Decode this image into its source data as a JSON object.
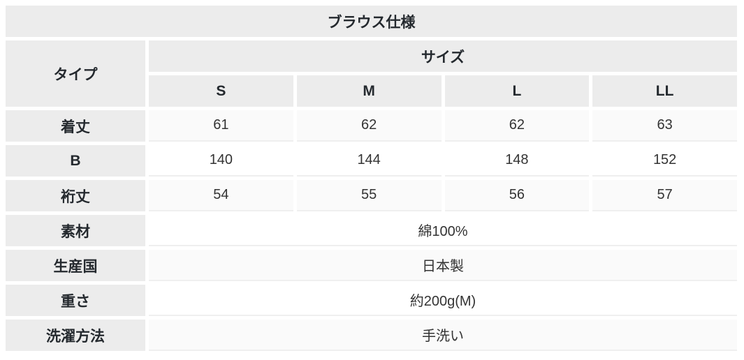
{
  "chart_data": {
    "type": "table",
    "title": "ブラウス仕様",
    "type_header": "タイプ",
    "size_group_header": "サイズ",
    "size_columns": [
      "S",
      "M",
      "L",
      "LL"
    ],
    "measurement_rows": [
      {
        "label": "着丈",
        "values": [
          "61",
          "62",
          "62",
          "63"
        ]
      },
      {
        "label": "B",
        "values": [
          "140",
          "144",
          "148",
          "152"
        ]
      },
      {
        "label": "裄丈",
        "values": [
          "54",
          "55",
          "56",
          "57"
        ]
      }
    ],
    "info_rows": [
      {
        "label": "素材",
        "value": "綿100%"
      },
      {
        "label": "生産国",
        "value": "日本製"
      },
      {
        "label": "重さ",
        "value": "約200g(M)"
      },
      {
        "label": "洗濯方法",
        "value": "手洗い"
      }
    ],
    "colors": {
      "header_cell_bg": "#ececec",
      "value_row_bg": "#ffffff",
      "value_row_alt_bg": "#fafafa",
      "header_text": "#24292e",
      "value_text": "#333333",
      "cell_underline": "#efefef",
      "gap": "#ffffff"
    },
    "layout_hints": {
      "grid": "white 5px gaps between cells",
      "row_striping": "alternating #fafafa / #ffffff on value rows"
    }
  }
}
